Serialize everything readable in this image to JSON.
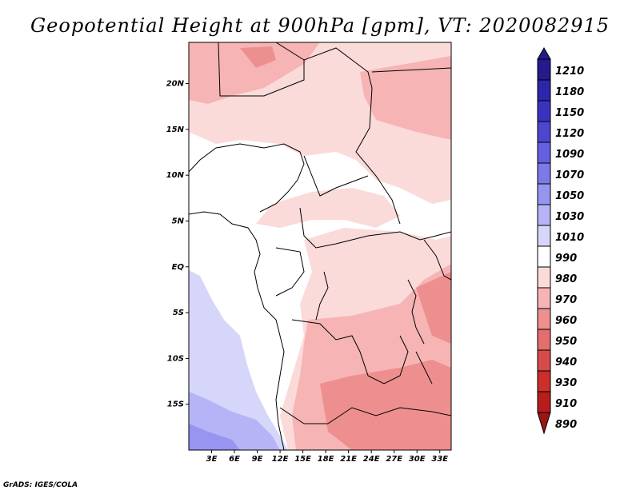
{
  "title": "Geopotential Height at 900hPa [gpm], VT: 2020082915",
  "credit": "GrADS: IGES/COLA",
  "map": {
    "lon_range": [
      0,
      34.5
    ],
    "lat_range": [
      -20,
      24.5
    ],
    "x_ticks": [
      {
        "label": "3E",
        "value": 3
      },
      {
        "label": "6E",
        "value": 6
      },
      {
        "label": "9E",
        "value": 9
      },
      {
        "label": "12E",
        "value": 12
      },
      {
        "label": "15E",
        "value": 15
      },
      {
        "label": "18E",
        "value": 18
      },
      {
        "label": "21E",
        "value": 21
      },
      {
        "label": "24E",
        "value": 24
      },
      {
        "label": "27E",
        "value": 27
      },
      {
        "label": "30E",
        "value": 30
      },
      {
        "label": "33E",
        "value": 33
      }
    ],
    "y_ticks": [
      {
        "label": "20N",
        "value": 20
      },
      {
        "label": "15N",
        "value": 15
      },
      {
        "label": "10N",
        "value": 10
      },
      {
        "label": "5N",
        "value": 5
      },
      {
        "label": "EQ",
        "value": 0
      },
      {
        "label": "5S",
        "value": -5
      },
      {
        "label": "10S",
        "value": -10
      },
      {
        "label": "15S",
        "value": -15
      }
    ]
  },
  "colorbar": {
    "levels": [
      "1210",
      "1180",
      "1150",
      "1120",
      "1090",
      "1070",
      "1050",
      "1030",
      "1010",
      "990",
      "980",
      "970",
      "960",
      "950",
      "940",
      "930",
      "910",
      "890"
    ],
    "colors": [
      "#241a8c",
      "#2e26a8",
      "#3a33bf",
      "#4d47cf",
      "#6560dd",
      "#7d79e8",
      "#9895f0",
      "#b6b4f6",
      "#d6d6fa",
      "#ffffff",
      "#fbdada",
      "#f6b4b4",
      "#ee8f8f",
      "#e46d6d",
      "#d94b4b",
      "#cc2d2d",
      "#b81c1c",
      "#9c1414"
    ]
  }
}
